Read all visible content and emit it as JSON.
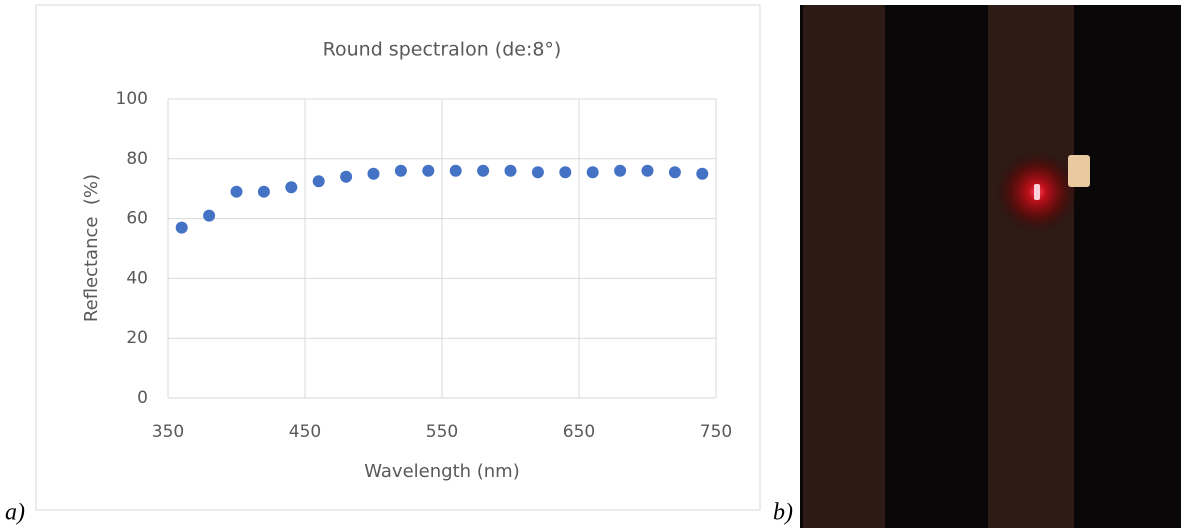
{
  "chart_data": {
    "type": "scatter",
    "title": "Round spectralon (de:8°)",
    "x_label": "Wavelength (nm)",
    "y_label": "Reflectance  (%)",
    "x": [
      360,
      380,
      400,
      420,
      440,
      460,
      480,
      500,
      520,
      540,
      560,
      580,
      600,
      620,
      640,
      660,
      680,
      700,
      720,
      740
    ],
    "values": [
      57,
      61,
      69,
      69,
      70.5,
      72.5,
      74,
      75,
      76,
      76,
      76,
      76,
      76,
      75.5,
      75.5,
      75.5,
      76,
      76,
      75.5,
      75
    ],
    "color": "#4472c4",
    "xlim": [
      350,
      750
    ],
    "xticks": [
      350,
      450,
      550,
      650,
      750
    ],
    "ylim": [
      0,
      100
    ],
    "yticks": [
      0,
      20,
      40,
      60,
      80,
      100
    ],
    "grid": true
  },
  "panel_labels": [
    "a)",
    "b)"
  ]
}
